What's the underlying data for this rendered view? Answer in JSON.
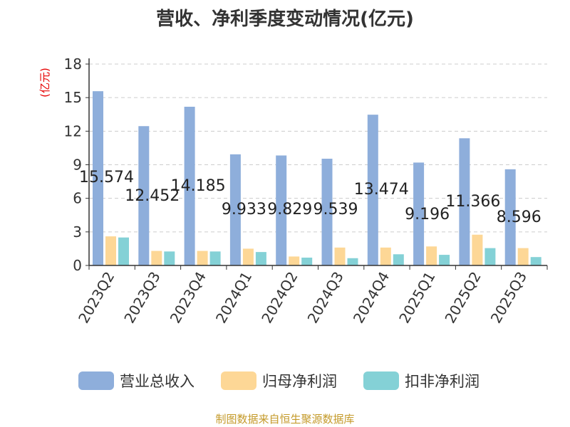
{
  "chart_data": {
    "type": "bar",
    "title": "营收、净利季度变动情况(亿元)",
    "unit_label": "(亿元)",
    "categories": [
      "2023Q2",
      "2023Q3",
      "2023Q4",
      "2024Q1",
      "2024Q2",
      "2024Q3",
      "2024Q4",
      "2025Q1",
      "2025Q2",
      "2025Q3"
    ],
    "series": [
      {
        "name": "营业总收入",
        "color": "#8eaedb",
        "values": [
          15.574,
          12.452,
          14.185,
          9.933,
          9.829,
          9.539,
          13.474,
          9.196,
          11.366,
          8.596
        ]
      },
      {
        "name": "归母净利润",
        "color": "#fdd796",
        "values": [
          2.6,
          1.3,
          1.3,
          1.5,
          0.8,
          1.6,
          1.6,
          1.7,
          2.75,
          1.55
        ]
      },
      {
        "name": "扣非净利润",
        "color": "#84d1d6",
        "values": [
          2.5,
          1.25,
          1.25,
          1.2,
          0.7,
          0.65,
          1.0,
          0.95,
          1.55,
          0.75
        ]
      }
    ],
    "data_labels": [
      "15.574",
      "12.452",
      "14.185",
      "9.933",
      "9.829",
      "9.539",
      "13.474",
      "9.196",
      "11.366",
      "8.596"
    ],
    "y_ticks": [
      "0",
      "3",
      "6",
      "9",
      "12",
      "15",
      "18"
    ],
    "ylim": [
      0,
      18
    ],
    "grid": true,
    "legend_position": "bottom"
  },
  "source": "制图数据来自恒生聚源数据库"
}
